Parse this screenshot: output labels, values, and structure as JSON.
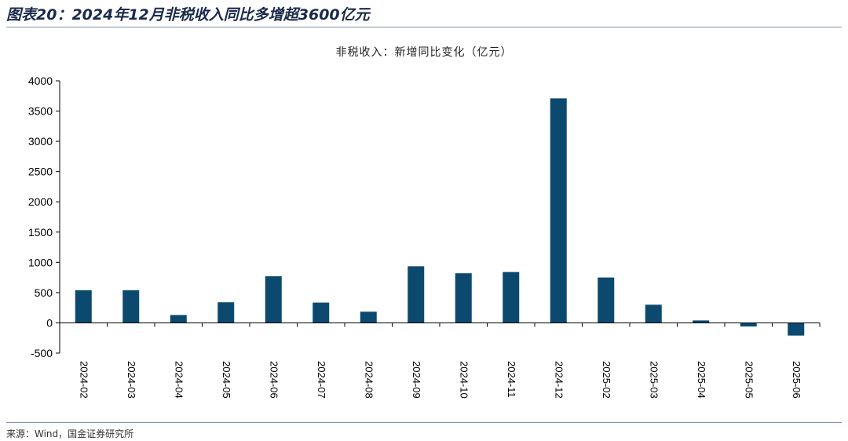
{
  "figure": {
    "title": "图表20：2024年12月非税收入同比多增超3600亿元",
    "source": "来源：Wind，国金证券研究所"
  },
  "colors": {
    "bar": "#0b4a6e",
    "rule": "#7f93a8"
  },
  "chart_data": {
    "type": "bar",
    "title": "非税收入：新增同比变化（亿元）",
    "xlabel": "",
    "ylabel": "",
    "categories": [
      "2024-02",
      "2024-03",
      "2024-04",
      "2024-05",
      "2024-06",
      "2024-07",
      "2024-08",
      "2024-09",
      "2024-10",
      "2024-11",
      "2024-12",
      "2025-02",
      "2025-03",
      "2025-04",
      "2025-05",
      "2025-06"
    ],
    "values": [
      540,
      540,
      130,
      340,
      770,
      335,
      185,
      935,
      820,
      840,
      3710,
      750,
      300,
      40,
      -60,
      -210
    ],
    "ylim": [
      -500,
      4000
    ],
    "yticks": [
      4000,
      3500,
      3000,
      2500,
      2000,
      1500,
      1000,
      500,
      0,
      -500
    ],
    "grid": false,
    "legend": "none"
  }
}
